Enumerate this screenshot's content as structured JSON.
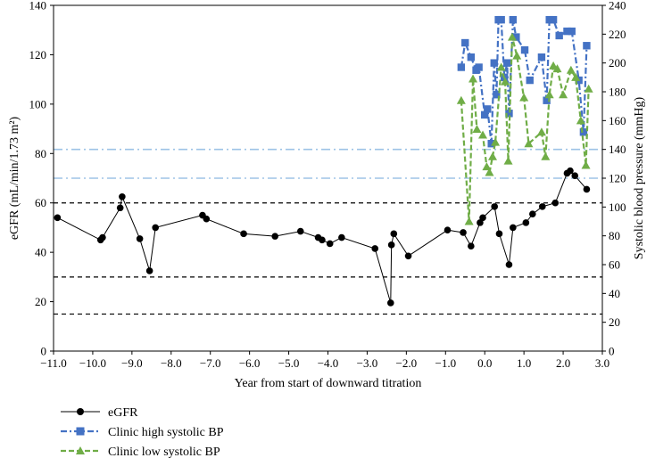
{
  "chart_data": {
    "type": "line",
    "title": "",
    "xlabel": "Year from start of downward titration",
    "ylabel": "eGFR (mL/min/1.73 m²)",
    "y2label": "Systolic blood pressure (mmHg)",
    "xlim": [
      -11.0,
      3.0
    ],
    "ylim": [
      0,
      140
    ],
    "y2lim": [
      0,
      240
    ],
    "x_ticks": [
      -11.0,
      -10.0,
      -9.0,
      -8.0,
      -7.0,
      -6.0,
      -5.0,
      -4.0,
      -3.0,
      -2.0,
      -1.0,
      0.0,
      1.0,
      2.0,
      3.0
    ],
    "x_tick_labels": [
      "−11.0",
      "−10.0",
      "−9.0",
      "−8.0",
      "−7.0",
      "−6.0",
      "−5.0",
      "−4.0",
      "−3.0",
      "−2.0",
      "−1.0",
      "0.0",
      "1.0",
      "2.0",
      "3.0"
    ],
    "y_ticks": [
      0,
      20,
      40,
      60,
      80,
      100,
      120,
      140
    ],
    "y_tick_labels": [
      "0",
      "20",
      "40",
      "60",
      "80",
      "100",
      "120",
      "140"
    ],
    "y2_ticks": [
      0,
      20,
      40,
      60,
      80,
      100,
      120,
      140,
      160,
      180,
      200,
      220,
      240
    ],
    "y2_tick_labels": [
      "0",
      "20",
      "40",
      "60",
      "80",
      "100",
      "120",
      "140",
      "160",
      "180",
      "200",
      "220",
      "240"
    ],
    "reference_lines_egfr": [
      60,
      30,
      15
    ],
    "reference_lines_sbp": [
      140,
      120
    ],
    "legend_position": "bottom-left",
    "series": [
      {
        "name": "eGFR",
        "axis": "left",
        "color": "#000000",
        "marker": "circle",
        "x": [
          -10.9,
          -9.8,
          -9.75,
          -9.3,
          -9.25,
          -8.8,
          -8.55,
          -8.4,
          -7.2,
          -7.1,
          -6.15,
          -5.35,
          -4.7,
          -4.25,
          -4.15,
          -3.95,
          -3.65,
          -2.8,
          -2.4,
          -2.38,
          -2.32,
          -1.95,
          -0.95,
          -0.55,
          -0.35,
          -0.12,
          -0.05,
          0.25,
          0.37,
          0.62,
          0.72,
          1.05,
          1.22,
          1.47,
          1.8,
          2.1,
          2.18,
          2.3,
          2.6
        ],
        "values": [
          54,
          45,
          46,
          58,
          62.5,
          45.5,
          32.5,
          50,
          55,
          53.5,
          47.5,
          46.5,
          48.5,
          46,
          45,
          43.5,
          46,
          41.5,
          19.5,
          43,
          47.5,
          38.5,
          49,
          48,
          42.5,
          52,
          54,
          58.5,
          47.5,
          35,
          50,
          52,
          55.5,
          58.5,
          60,
          72,
          73,
          71,
          65.5
        ]
      },
      {
        "name": "Clinic high systolic BP",
        "axis": "right",
        "color": "#4472c4",
        "marker": "square",
        "x": [
          -0.6,
          -0.5,
          -0.35,
          -0.22,
          -0.15,
          0.0,
          0.07,
          0.17,
          0.24,
          0.3,
          0.35,
          0.42,
          0.5,
          0.57,
          0.62,
          0.72,
          0.8,
          1.02,
          1.15,
          1.45,
          1.58,
          1.65,
          1.75,
          1.9,
          2.1,
          2.22,
          2.4,
          2.52,
          2.6
        ],
        "values": [
          197,
          214,
          204,
          195,
          197,
          164,
          168,
          144,
          200,
          178,
          230,
          230,
          190,
          200,
          165,
          230,
          218,
          209,
          188,
          204,
          174,
          230,
          230,
          219,
          222,
          222,
          188,
          152,
          212
        ]
      },
      {
        "name": "Clinic low systolic BP",
        "axis": "right",
        "color": "#70ad47",
        "marker": "triangle",
        "x": [
          -0.6,
          -0.4,
          -0.3,
          -0.2,
          -0.05,
          0.05,
          0.12,
          0.2,
          0.27,
          0.42,
          0.52,
          0.6,
          0.7,
          0.82,
          1.0,
          1.12,
          1.45,
          1.55,
          1.65,
          1.75,
          1.85,
          2.0,
          2.2,
          2.32,
          2.45,
          2.58,
          2.65
        ],
        "values": [
          174,
          90,
          189,
          154,
          150,
          128,
          124,
          135,
          145,
          197,
          187,
          132,
          218,
          205,
          176,
          144,
          152,
          135,
          178,
          198,
          196,
          178,
          195,
          190,
          160,
          129,
          182
        ]
      }
    ]
  },
  "legend": {
    "items": [
      "eGFR",
      "Clinic high systolic BP",
      "Clinic low systolic BP"
    ]
  },
  "colors": {
    "egfr": "#000000",
    "high_bp": "#4472c4",
    "low_bp": "#70ad47",
    "sbp_reference": "#9dc3e6"
  }
}
